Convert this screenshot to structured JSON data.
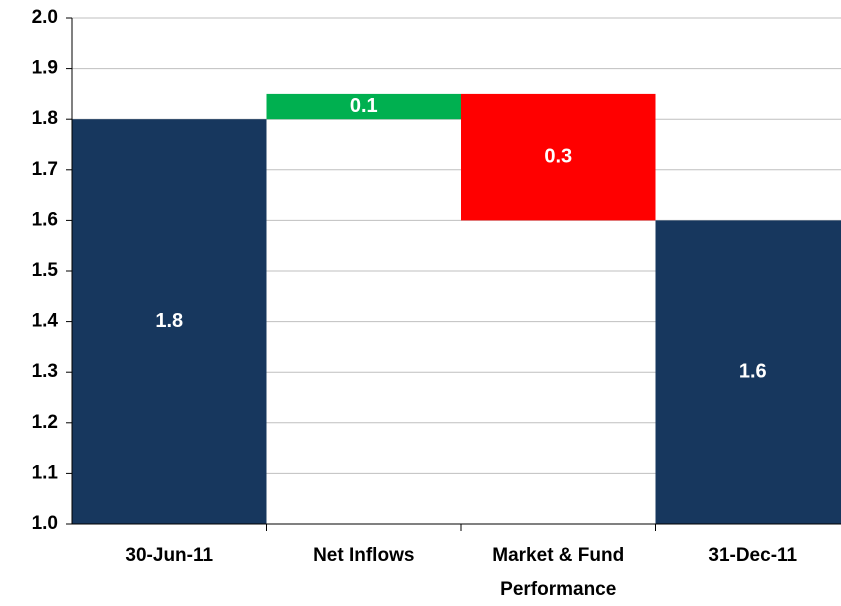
{
  "chart_data": {
    "type": "waterfall",
    "categories": [
      "30-Jun-11",
      "Net Inflows",
      "Market & Fund Performance",
      "31-Dec-11"
    ],
    "values": [
      1.8,
      0.05,
      -0.25,
      1.6
    ],
    "value_labels": [
      "1.8",
      "0.1",
      "0.3",
      "1.6"
    ],
    "measure": [
      "absolute",
      "relative",
      "relative",
      "absolute"
    ],
    "total_color": "#17375e",
    "increase_color": "#00b050",
    "decrease_color": "#ff0000",
    "ylim": [
      1.0,
      2.0
    ],
    "yticks": [
      {
        "value": 1.0,
        "label": "1.0"
      },
      1.1,
      1.2,
      1.3,
      1.4,
      1.5,
      1.6,
      1.7,
      1.8,
      1.9,
      {
        "value": 2.0,
        "label": "2.0"
      }
    ],
    "grid": true
  }
}
